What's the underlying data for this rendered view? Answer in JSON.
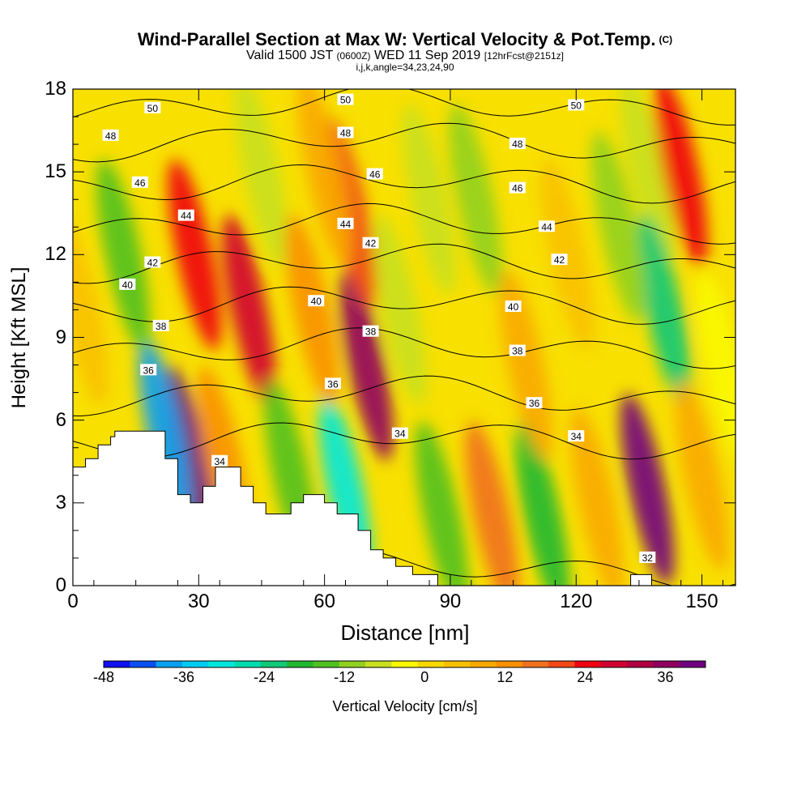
{
  "title": {
    "main": "Wind-Parallel Section at Max W: Vertical Velocity & Pot.Temp.",
    "copyright": "(C)",
    "sub_prefix": "Valid 1500 JST",
    "sub_utc": "(0600Z)",
    "sub_date": "WED 11 Sep 2019",
    "sub_fcst": "[12hrFcst@2151z]",
    "sub3": "i,j,k,angle=34,23,24,90"
  },
  "chart_data": {
    "type": "heatmap",
    "xlabel": "Distance [nm]",
    "ylabel": "Height [Kft MSL]",
    "xlim": [
      0,
      158
    ],
    "ylim": [
      0,
      18
    ],
    "x_ticks": [
      0,
      30,
      60,
      90,
      120,
      150
    ],
    "y_ticks": [
      0,
      3,
      6,
      9,
      12,
      15,
      18
    ],
    "grid": false,
    "colorbar": {
      "label": "Vertical Velocity [cm/s]",
      "range": [
        -48,
        42
      ],
      "tick_values": [
        -48,
        -36,
        -24,
        -12,
        0,
        12,
        24,
        36
      ],
      "colors": [
        "#1010f0",
        "#0a50f0",
        "#0aa0f0",
        "#00ccf0",
        "#00e8dc",
        "#00dcb0",
        "#10c878",
        "#20b830",
        "#50c020",
        "#90d020",
        "#c8e020",
        "#f8f800",
        "#f8d800",
        "#f8c000",
        "#f8a800",
        "#f89000",
        "#f07020",
        "#f04818",
        "#f00010",
        "#d00030",
        "#b00040",
        "#900060",
        "#700080"
      ]
    },
    "vertical_velocity_cells": [
      {
        "x": 2,
        "y": 10,
        "w": 4
      },
      {
        "x": 28,
        "y": 4.5,
        "w": 40
      },
      {
        "x": 29,
        "y": 12,
        "w": 24
      },
      {
        "x": 22,
        "y": 5.5,
        "w": -40
      },
      {
        "x": 42,
        "y": 10,
        "w": 30
      },
      {
        "x": 36,
        "y": 4.5,
        "w": 12
      },
      {
        "x": 52,
        "y": 4,
        "w": -14
      },
      {
        "x": 45,
        "y": 15,
        "w": -8
      },
      {
        "x": 65,
        "y": 3.5,
        "w": -30
      },
      {
        "x": 70,
        "y": 8,
        "w": 36
      },
      {
        "x": 66,
        "y": 13.5,
        "w": 20
      },
      {
        "x": 60,
        "y": 15,
        "w": 10
      },
      {
        "x": 88,
        "y": 2.5,
        "w": -14
      },
      {
        "x": 85,
        "y": 14,
        "w": -8
      },
      {
        "x": 100,
        "y": 2.5,
        "w": 18
      },
      {
        "x": 96,
        "y": 14,
        "w": -10
      },
      {
        "x": 112,
        "y": 2.5,
        "w": -18
      },
      {
        "x": 108,
        "y": 8,
        "w": 10
      },
      {
        "x": 125,
        "y": 3,
        "w": 8
      },
      {
        "x": 118,
        "y": 12,
        "w": 6
      },
      {
        "x": 137,
        "y": 3.5,
        "w": 40
      },
      {
        "x": 137,
        "y": 15,
        "w": -6
      },
      {
        "x": 141,
        "y": 10,
        "w": -22
      },
      {
        "x": 145,
        "y": 15,
        "w": 24
      },
      {
        "x": 150,
        "y": 4,
        "w": 10
      },
      {
        "x": 155,
        "y": 8,
        "w": -4
      },
      {
        "x": 12,
        "y": 12,
        "w": -14
      },
      {
        "x": 57,
        "y": 10,
        "w": 12
      },
      {
        "x": 78,
        "y": 10,
        "w": -6
      },
      {
        "x": 130,
        "y": 13,
        "w": -12
      }
    ],
    "potential_temperature_contours": [
      {
        "value": 34,
        "label": "34"
      },
      {
        "value": 36,
        "label": "36"
      },
      {
        "value": 38,
        "label": "38"
      },
      {
        "value": 40,
        "label": "40"
      },
      {
        "value": 42,
        "label": "42"
      },
      {
        "value": 44,
        "label": "44"
      },
      {
        "value": 46,
        "label": "46"
      },
      {
        "value": 48,
        "label": "48"
      },
      {
        "value": 50,
        "label": "50"
      },
      {
        "value": 32,
        "label": "32"
      }
    ],
    "contour_label_positions": [
      {
        "text": "50",
        "x": 19,
        "y": 17.3
      },
      {
        "text": "50",
        "x": 65,
        "y": 17.6
      },
      {
        "text": "50",
        "x": 120,
        "y": 17.4
      },
      {
        "text": "48",
        "x": 9,
        "y": 16.3
      },
      {
        "text": "48",
        "x": 65,
        "y": 16.4
      },
      {
        "text": "48",
        "x": 106,
        "y": 16.0
      },
      {
        "text": "46",
        "x": 16,
        "y": 14.6
      },
      {
        "text": "46",
        "x": 72,
        "y": 14.9
      },
      {
        "text": "46",
        "x": 106,
        "y": 14.4
      },
      {
        "text": "44",
        "x": 27,
        "y": 13.4
      },
      {
        "text": "44",
        "x": 65,
        "y": 13.1
      },
      {
        "text": "44",
        "x": 113,
        "y": 13.0
      },
      {
        "text": "42",
        "x": 19,
        "y": 11.7
      },
      {
        "text": "42",
        "x": 71,
        "y": 12.4
      },
      {
        "text": "42",
        "x": 116,
        "y": 11.8
      },
      {
        "text": "40",
        "x": 13,
        "y": 10.9
      },
      {
        "text": "40",
        "x": 58,
        "y": 10.3
      },
      {
        "text": "40",
        "x": 105,
        "y": 10.1
      },
      {
        "text": "38",
        "x": 21,
        "y": 9.4
      },
      {
        "text": "38",
        "x": 71,
        "y": 9.2
      },
      {
        "text": "38",
        "x": 106,
        "y": 8.5
      },
      {
        "text": "36",
        "x": 18,
        "y": 7.8
      },
      {
        "text": "36",
        "x": 62,
        "y": 7.3
      },
      {
        "text": "36",
        "x": 110,
        "y": 6.6
      },
      {
        "text": "34",
        "x": 35,
        "y": 4.5
      },
      {
        "text": "34",
        "x": 78,
        "y": 5.5
      },
      {
        "text": "34",
        "x": 120,
        "y": 5.4
      },
      {
        "text": "32",
        "x": 137,
        "y": 1.0
      }
    ],
    "terrain_profile": [
      [
        0,
        4.3
      ],
      [
        3,
        4.3
      ],
      [
        3,
        4.6
      ],
      [
        6,
        4.6
      ],
      [
        6,
        5.1
      ],
      [
        9,
        5.1
      ],
      [
        9,
        5.4
      ],
      [
        10,
        5.4
      ],
      [
        10,
        5.6
      ],
      [
        22,
        5.6
      ],
      [
        22,
        4.6
      ],
      [
        25,
        4.6
      ],
      [
        25,
        3.3
      ],
      [
        28,
        3.3
      ],
      [
        28,
        3.0
      ],
      [
        31,
        3.0
      ],
      [
        31,
        3.6
      ],
      [
        34,
        3.6
      ],
      [
        34,
        4.3
      ],
      [
        40,
        4.3
      ],
      [
        40,
        3.6
      ],
      [
        43,
        3.6
      ],
      [
        43,
        3.0
      ],
      [
        46,
        3.0
      ],
      [
        46,
        2.6
      ],
      [
        52,
        2.6
      ],
      [
        52,
        3.0
      ],
      [
        55,
        3.0
      ],
      [
        55,
        3.3
      ],
      [
        60,
        3.3
      ],
      [
        60,
        3.0
      ],
      [
        63,
        3.0
      ],
      [
        63,
        2.6
      ],
      [
        68,
        2.6
      ],
      [
        68,
        2.0
      ],
      [
        71,
        2.0
      ],
      [
        71,
        1.3
      ],
      [
        74,
        1.3
      ],
      [
        74,
        1.0
      ],
      [
        77,
        1.0
      ],
      [
        77,
        0.7
      ],
      [
        81,
        0.7
      ],
      [
        81,
        0.4
      ],
      [
        87,
        0.4
      ],
      [
        87,
        0
      ],
      [
        133,
        0
      ],
      [
        133,
        0.4
      ],
      [
        138,
        0.4
      ],
      [
        138,
        0
      ],
      [
        158,
        0
      ]
    ]
  }
}
